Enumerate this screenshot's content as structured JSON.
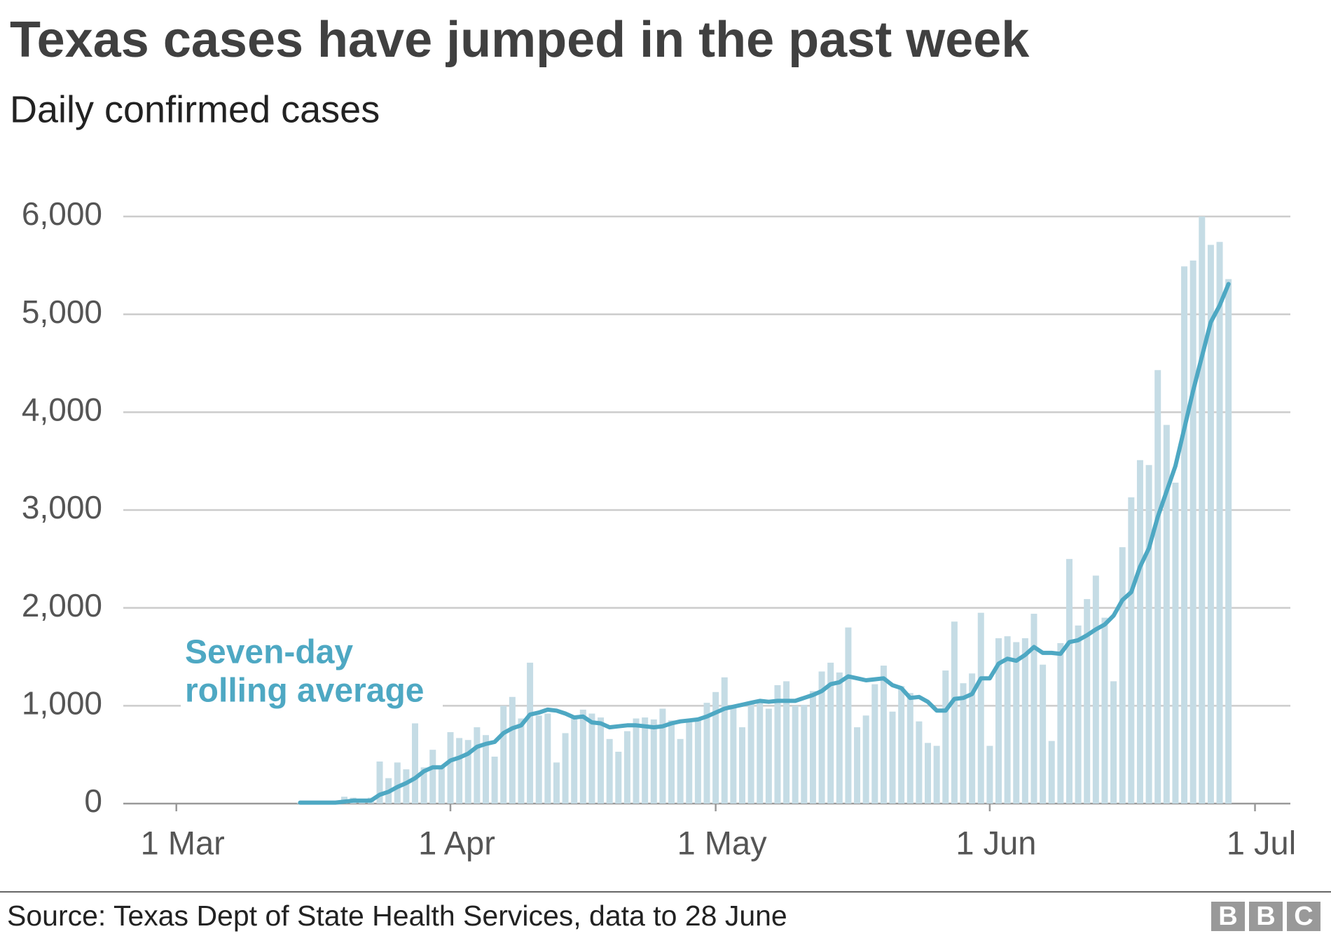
{
  "chart_data": {
    "type": "bar-line",
    "title": "Texas cases have jumped in the past week",
    "subtitle": "Daily confirmed cases",
    "source": "Source: Texas Dept of State Health Services, data to 28 June",
    "logo": [
      "B",
      "B",
      "C"
    ],
    "x": [
      "03-15",
      "03-16",
      "03-17",
      "03-18",
      "03-19",
      "03-20",
      "03-21",
      "03-22",
      "03-23",
      "03-24",
      "03-25",
      "03-26",
      "03-27",
      "03-28",
      "03-29",
      "03-30",
      "03-31",
      "04-01",
      "04-02",
      "04-03",
      "04-04",
      "04-05",
      "04-06",
      "04-07",
      "04-08",
      "04-09",
      "04-10",
      "04-11",
      "04-12",
      "04-13",
      "04-14",
      "04-15",
      "04-16",
      "04-17",
      "04-18",
      "04-19",
      "04-20",
      "04-21",
      "04-22",
      "04-23",
      "04-24",
      "04-25",
      "04-26",
      "04-27",
      "04-28",
      "04-29",
      "04-30",
      "05-01",
      "05-02",
      "05-03",
      "05-04",
      "05-05",
      "05-06",
      "05-07",
      "05-08",
      "05-09",
      "05-10",
      "05-11",
      "05-12",
      "05-13",
      "05-14",
      "05-15",
      "05-16",
      "05-17",
      "05-18",
      "05-19",
      "05-20",
      "05-21",
      "05-22",
      "05-23",
      "05-24",
      "05-25",
      "05-26",
      "05-27",
      "05-28",
      "05-29",
      "05-30",
      "05-31",
      "06-01",
      "06-02",
      "06-03",
      "06-04",
      "06-05",
      "06-06",
      "06-07",
      "06-08",
      "06-09",
      "06-10",
      "06-11",
      "06-12",
      "06-13",
      "06-14",
      "06-15",
      "06-16",
      "06-17",
      "06-18",
      "06-19",
      "06-20",
      "06-21",
      "06-22",
      "06-23",
      "06-24",
      "06-25",
      "06-26",
      "06-27",
      "06-28"
    ],
    "series": [
      {
        "name": "Daily confirmed cases",
        "color": "#c5dce5",
        "kind": "bar",
        "values": [
          10,
          10,
          15,
          20,
          30,
          70,
          60,
          30,
          60,
          430,
          260,
          420,
          350,
          820,
          370,
          550,
          380,
          730,
          670,
          650,
          780,
          700,
          480,
          1000,
          1090,
          870,
          1440,
          900,
          920,
          420,
          720,
          890,
          960,
          920,
          880,
          660,
          530,
          740,
          870,
          880,
          860,
          970,
          850,
          660,
          830,
          870,
          1030,
          1140,
          1290,
          990,
          780,
          1030,
          1050,
          970,
          1210,
          1250,
          1000,
          1010,
          1150,
          1350,
          1440,
          1340,
          1800,
          780,
          900,
          1220,
          1410,
          940,
          1200,
          1130,
          840,
          620,
          590,
          1360,
          1860,
          1230,
          1330,
          1950,
          590,
          1690,
          1710,
          1650,
          1690,
          1940,
          1420,
          640,
          1640,
          2500,
          1820,
          2090,
          2330,
          1900,
          1250,
          2620,
          3130,
          3510,
          3460,
          4430,
          3870,
          3280,
          5490,
          5550,
          6000,
          5710,
          5740,
          5360
        ]
      },
      {
        "name": [
          "Seven-day",
          "rolling average"
        ],
        "color": "#4ea8c3",
        "kind": "line",
        "values": [
          10,
          10,
          10,
          10,
          10,
          20,
          30,
          30,
          30,
          90,
          120,
          170,
          210,
          260,
          330,
          370,
          370,
          440,
          470,
          510,
          580,
          610,
          630,
          720,
          770,
          800,
          910,
          930,
          960,
          950,
          920,
          880,
          890,
          830,
          820,
          780,
          790,
          800,
          800,
          790,
          780,
          790,
          820,
          840,
          850,
          860,
          890,
          930,
          970,
          990,
          1010,
          1030,
          1050,
          1040,
          1050,
          1050,
          1050,
          1080,
          1110,
          1150,
          1220,
          1240,
          1300,
          1280,
          1260,
          1270,
          1280,
          1210,
          1180,
          1080,
          1090,
          1040,
          950,
          950,
          1070,
          1080,
          1120,
          1280,
          1280,
          1430,
          1480,
          1460,
          1520,
          1600,
          1540,
          1540,
          1530,
          1650,
          1670,
          1720,
          1780,
          1830,
          1920,
          2080,
          2160,
          2420,
          2610,
          2930,
          3190,
          3450,
          3830,
          4220,
          4570,
          4920,
          5090,
          5310
        ]
      }
    ],
    "xlim": [
      "02-23",
      "07-05"
    ],
    "xticks": [
      {
        "value": "03-01",
        "label": "1 Mar"
      },
      {
        "value": "04-01",
        "label": "1 Apr"
      },
      {
        "value": "05-01",
        "label": "1 May"
      },
      {
        "value": "06-01",
        "label": "1 Jun"
      },
      {
        "value": "07-01",
        "label": "1 Jul"
      }
    ],
    "ylim": [
      0,
      6000
    ],
    "yticks": [
      0,
      {
        "value": 1000,
        "label": "1,000"
      },
      {
        "value": 2000,
        "label": "2,000"
      },
      {
        "value": 3000,
        "label": "3,000"
      },
      {
        "value": 4000,
        "label": "4,000"
      },
      {
        "value": 5000,
        "label": "5,000"
      },
      {
        "value": 6000,
        "label": "6,000"
      }
    ],
    "grid": true
  }
}
